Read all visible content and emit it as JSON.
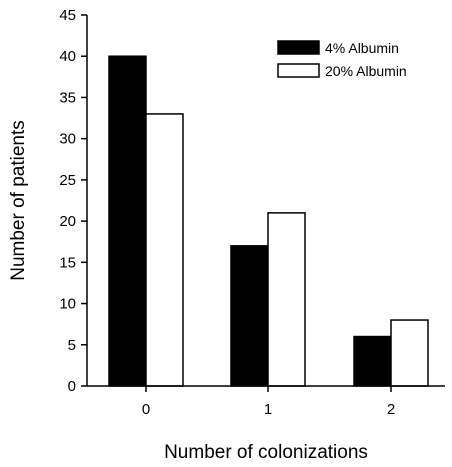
{
  "chart_data": {
    "type": "bar",
    "categories": [
      "0",
      "1",
      "2"
    ],
    "series": [
      {
        "name": "4% Albumin",
        "values": [
          40,
          17,
          6
        ],
        "color": "#000000"
      },
      {
        "name": "20% Albumin",
        "values": [
          33,
          21,
          8
        ],
        "color": "#ffffff"
      }
    ],
    "xlabel": "Number of colonizations",
    "ylabel": "Number of patients",
    "ylim": [
      0,
      45
    ],
    "yticks": [
      "0",
      "5",
      "10",
      "15",
      "20",
      "25",
      "30",
      "35",
      "40",
      "45"
    ],
    "grid": false,
    "legend": "top-right"
  }
}
